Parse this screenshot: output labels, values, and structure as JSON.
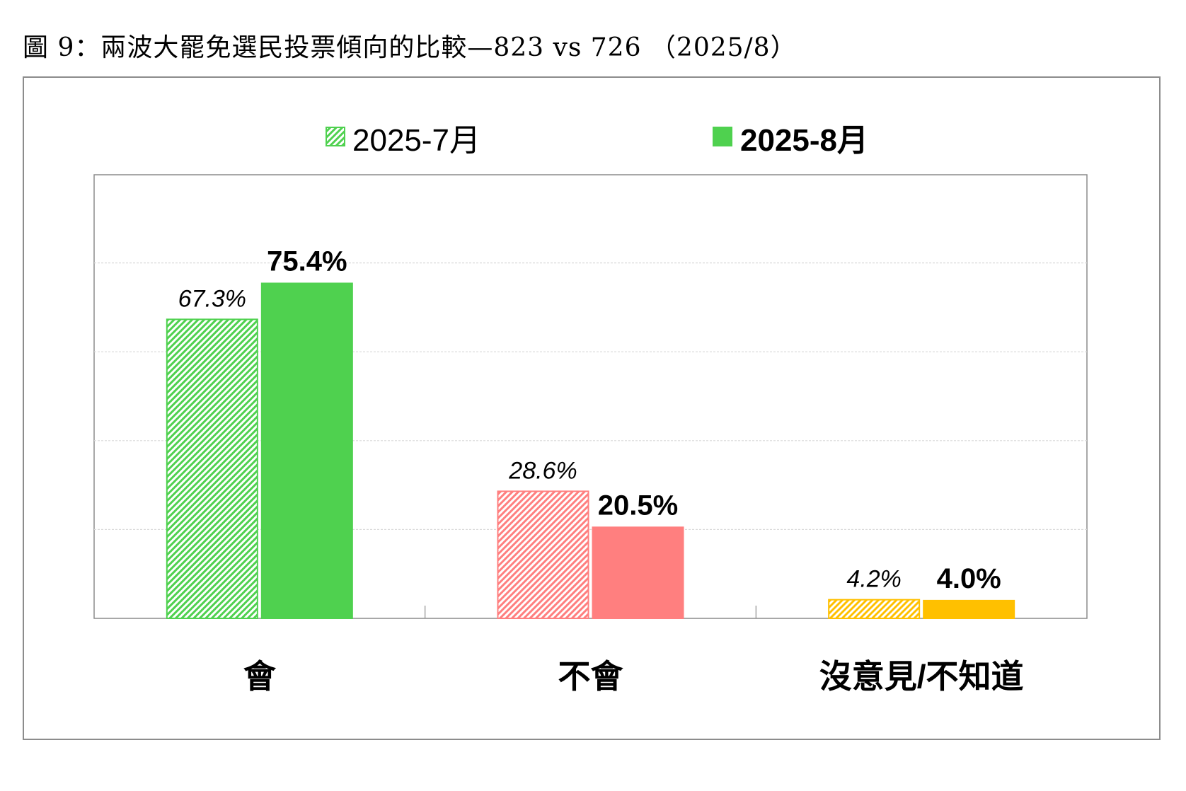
{
  "figure": {
    "title": "圖 9：兩波大罷免選民投票傾向的比較—823 vs 726 （2025/8）"
  },
  "chart_data": {
    "type": "bar",
    "categories": [
      "會",
      "不會",
      "沒意見/不知道"
    ],
    "category_colors": [
      "#4fd14f",
      "#ff7f7f",
      "#ffc000"
    ],
    "series": [
      {
        "name": "2025-7月",
        "values": [
          67.3,
          28.6,
          4.2
        ],
        "style": "hatched",
        "label_style": "italic"
      },
      {
        "name": "2025-8月",
        "values": [
          75.4,
          20.5,
          4.0
        ],
        "style": "solid",
        "label_style": "bold"
      }
    ],
    "data_labels": [
      [
        "67.3%",
        "28.6%",
        "4.2%"
      ],
      [
        "75.4%",
        "20.5%",
        "4.0%"
      ]
    ],
    "ylim": [
      0,
      100
    ],
    "grid": true,
    "legend_position": "top-center",
    "legend_swatch_colors": [
      "#4fd14f",
      "#4fd14f"
    ]
  }
}
